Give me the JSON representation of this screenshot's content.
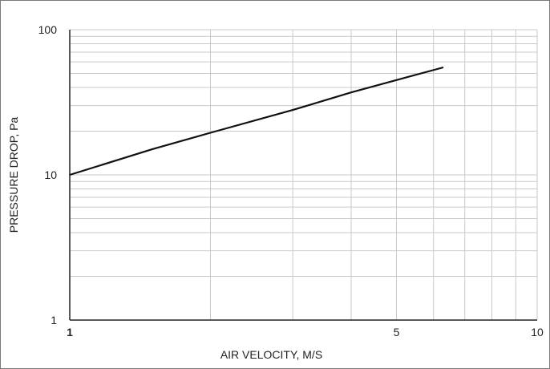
{
  "chart_data": {
    "type": "line",
    "title": "",
    "xlabel": "AIR VELOCITY, M/S",
    "ylabel": "PRESSURE DROP, Pa",
    "x_scale": "log",
    "y_scale": "log",
    "xlim": [
      1,
      10
    ],
    "ylim": [
      1,
      100
    ],
    "x_ticks": [
      {
        "value": 1,
        "label": "1"
      },
      {
        "value": 5,
        "label": "5"
      },
      {
        "value": 10,
        "label": "10"
      }
    ],
    "y_ticks": [
      {
        "value": 1,
        "label": "1"
      },
      {
        "value": 10,
        "label": "10"
      },
      {
        "value": 100,
        "label": "100"
      }
    ],
    "grid": true,
    "legend": "none",
    "series": [
      {
        "x": [
          1,
          1.5,
          2,
          3,
          4,
          5,
          6.3
        ],
        "y": [
          10,
          15,
          19.5,
          28,
          37,
          45,
          55
        ],
        "color": "#111111"
      }
    ]
  }
}
